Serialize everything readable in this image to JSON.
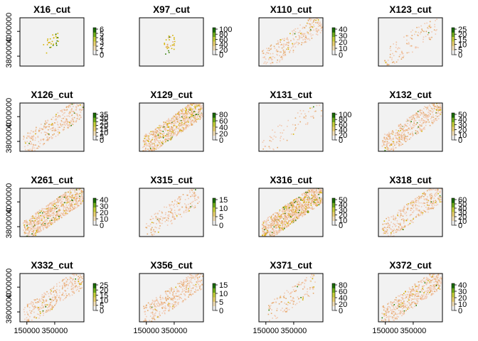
{
  "chart_data": {
    "type": "heatmap",
    "layout": {
      "rows": 4,
      "cols": 4
    },
    "x_ticks": [
      150000,
      350000
    ],
    "y_ticks": [
      3800000,
      4000000
    ],
    "xlim": [
      100000,
      560000
    ],
    "ylim": [
      3720000,
      4110000
    ],
    "colors": {
      "background": "#f2f2f2",
      "low": "#f2c9b0",
      "mid": "#e6a96b",
      "high": "#d4b400",
      "top": "#2e7d00",
      "legend_ramp": [
        "#f2f2f2",
        "#f3e0b8",
        "#e9d071",
        "#c6cf3a",
        "#6fae19",
        "#1a6e00"
      ]
    },
    "panels": [
      {
        "title": "X16_cut",
        "legend_ticks": [
          0,
          1,
          2,
          3,
          4,
          5,
          6
        ],
        "density": 0.02,
        "spread": 0.25,
        "hot": 0.9
      },
      {
        "title": "X97_cut",
        "legend_ticks": [
          0,
          20,
          40,
          60,
          80,
          100
        ],
        "density": 0.02,
        "spread": 0.2,
        "hot": 0.8
      },
      {
        "title": "X110_cut",
        "legend_ticks": [
          0,
          10,
          20,
          30,
          40
        ],
        "density": 0.25,
        "spread": 1.0,
        "hot": 0.05
      },
      {
        "title": "X123_cut",
        "legend_ticks": [
          0,
          5,
          10,
          15,
          20,
          25
        ],
        "density": 0.1,
        "spread": 0.9,
        "hot": 0.03
      },
      {
        "title": "X126_cut",
        "legend_ticks": [
          0,
          5,
          10,
          15,
          20,
          25,
          30,
          35
        ],
        "density": 0.3,
        "spread": 1.0,
        "hot": 0.05
      },
      {
        "title": "X129_cut",
        "legend_ticks": [
          0,
          20,
          40,
          60,
          80
        ],
        "density": 0.75,
        "spread": 1.0,
        "hot": 0.15
      },
      {
        "title": "X131_cut",
        "legend_ticks": [
          0,
          20,
          40,
          60,
          80,
          100
        ],
        "density": 0.06,
        "spread": 1.0,
        "hot": 0.05
      },
      {
        "title": "X132_cut",
        "legend_ticks": [
          0,
          10,
          20,
          30,
          40,
          50
        ],
        "density": 0.45,
        "spread": 1.0,
        "hot": 0.05
      },
      {
        "title": "X261_cut",
        "legend_ticks": [
          0,
          10,
          20,
          30,
          40
        ],
        "density": 0.75,
        "spread": 1.0,
        "hot": 0.12
      },
      {
        "title": "X315_cut",
        "legend_ticks": [
          0,
          5,
          10,
          15
        ],
        "density": 0.18,
        "spread": 0.9,
        "hot": 0.05
      },
      {
        "title": "X316_cut",
        "legend_ticks": [
          0,
          10,
          20,
          30,
          40,
          50
        ],
        "density": 0.97,
        "spread": 1.0,
        "hot": 0.15
      },
      {
        "title": "X318_cut",
        "legend_ticks": [
          0,
          10,
          20,
          30,
          40,
          50,
          60
        ],
        "density": 0.35,
        "spread": 1.0,
        "hot": 0.08
      },
      {
        "title": "X332_cut",
        "legend_ticks": [
          0,
          5,
          10,
          15,
          20,
          25
        ],
        "density": 0.3,
        "spread": 1.0,
        "hot": 0.05
      },
      {
        "title": "X356_cut",
        "legend_ticks": [
          0,
          5,
          10,
          15
        ],
        "density": 0.35,
        "spread": 1.0,
        "hot": 0.05
      },
      {
        "title": "X371_cut",
        "legend_ticks": [
          0,
          20,
          40,
          60,
          80
        ],
        "density": 0.12,
        "spread": 0.8,
        "hot": 0.1
      },
      {
        "title": "X372_cut",
        "legend_ticks": [
          0,
          10,
          20,
          30,
          40
        ],
        "density": 0.45,
        "spread": 1.0,
        "hot": 0.06
      }
    ]
  }
}
